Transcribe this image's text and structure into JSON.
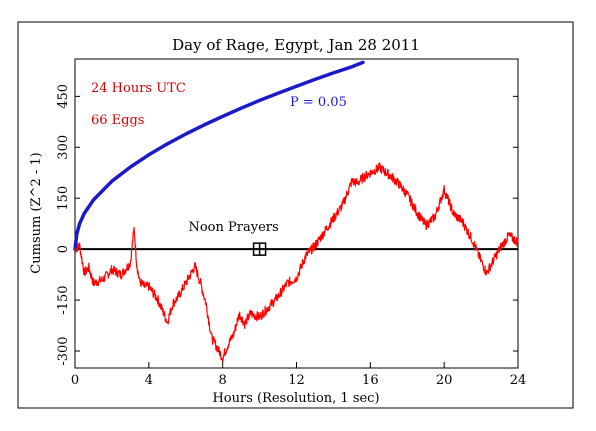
{
  "chart_data": {
    "type": "line",
    "title": "Day of Rage, Egypt, Jan 28 2011",
    "xlabel": "Hours (Resolution, 1 sec)",
    "ylabel": "Cumsum (Z^2 - 1)",
    "xlim": [
      0,
      24
    ],
    "ylim": [
      -350,
      560
    ],
    "x_ticks": [
      0,
      4,
      8,
      12,
      16,
      20,
      24
    ],
    "y_ticks": [
      -300,
      -150,
      0,
      150,
      300,
      450
    ],
    "grid": false,
    "annotations": {
      "period": "24 Hours UTC",
      "eggs": "66 Eggs",
      "p_label": "P = 0.05",
      "event_label": "Noon Prayers",
      "event_x": 10,
      "event_y": 0
    },
    "colors": {
      "cumsum": "#ff0000",
      "p_envelope": "#1a1acc",
      "annotation_text": "#cc0000",
      "p_label": "#1a1acc",
      "axis": "#000000"
    },
    "series": [
      {
        "type": "line",
        "x": [
          0,
          0.25,
          0.5,
          0.75,
          1,
          1.5,
          2,
          2.5,
          3,
          3.2,
          3.35,
          3.5,
          3.75,
          4,
          4.5,
          5,
          5.3,
          5.6,
          6,
          6.5,
          6.8,
          7.1,
          7.4,
          7.7,
          8,
          8.3,
          8.6,
          8.9,
          9.2,
          9.5,
          10,
          10.5,
          11,
          11.5,
          12,
          12.5,
          13,
          13.5,
          14,
          14.5,
          15,
          15.3,
          15.6,
          16,
          16.5,
          17,
          17.5,
          18,
          18.5,
          19,
          19.5,
          20,
          20.5,
          21,
          21.5,
          22,
          22.3,
          22.6,
          23,
          23.5,
          24
        ],
        "y": [
          0,
          10,
          -70,
          -55,
          -100,
          -90,
          -60,
          -75,
          -40,
          60,
          -45,
          -95,
          -110,
          -110,
          -150,
          -215,
          -160,
          -140,
          -100,
          -50,
          -100,
          -160,
          -260,
          -290,
          -320,
          -280,
          -250,
          -190,
          -220,
          -190,
          -200,
          -170,
          -140,
          -100,
          -85,
          -20,
          10,
          50,
          90,
          130,
          200,
          195,
          210,
          225,
          240,
          220,
          195,
          160,
          110,
          70,
          95,
          175,
          105,
          80,
          30,
          -35,
          -70,
          -40,
          0,
          40,
          20
        ]
      },
      {
        "name": "P = 0.05",
        "type": "line",
        "x": [
          0,
          0.1,
          0.25,
          0.5,
          1,
          2,
          3,
          4,
          5,
          6,
          7,
          8,
          9,
          10,
          11,
          12,
          13,
          14,
          15,
          15.6
        ],
        "y": [
          0,
          45,
          75,
          105,
          145,
          200,
          242,
          278,
          310,
          339,
          366,
          391,
          415,
          438,
          459,
          480,
          500,
          519,
          537,
          550
        ]
      }
    ]
  }
}
